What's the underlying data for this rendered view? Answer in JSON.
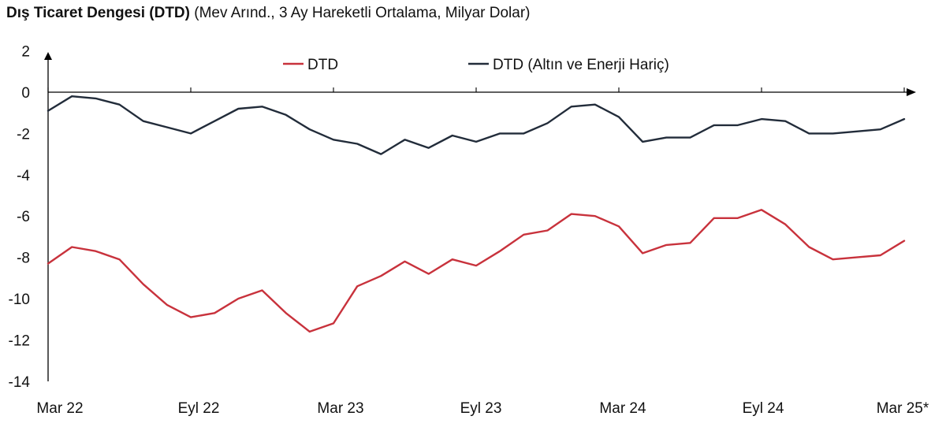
{
  "title": {
    "bold": "Dış Ticaret Dengesi (DTD)",
    "rest": " (Mev Arınd., 3 Ay Hareketli Ortalama, Milyar Dolar)"
  },
  "chart_data": {
    "type": "line",
    "x_tick_labels": [
      "Mar 22",
      "Eyl 22",
      "Mar 23",
      "Eyl 23",
      "Mar 24",
      "Eyl 24",
      "Mar 25*"
    ],
    "y_tick_labels": [
      "2",
      "0",
      "-2",
      "-4",
      "-6",
      "-8",
      "-10",
      "-12",
      "-14"
    ],
    "ylim": [
      -14,
      2
    ],
    "x": [
      "Mar 22",
      "Nis 22",
      "May 22",
      "Haz 22",
      "Tem 22",
      "Ağu 22",
      "Eyl 22",
      "Eki 22",
      "Kas 22",
      "Ara 22",
      "Oca 23",
      "Şub 23",
      "Mar 23",
      "Nis 23",
      "May 23",
      "Haz 23",
      "Tem 23",
      "Ağu 23",
      "Eyl 23",
      "Eki 23",
      "Kas 23",
      "Ara 23",
      "Oca 24",
      "Şub 24",
      "Mar 24",
      "Nis 24",
      "May 24",
      "Haz 24",
      "Tem 24",
      "Ağu 24",
      "Eyl 24",
      "Eki 24",
      "Kas 24",
      "Ara 24",
      "Oca 25",
      "Şub 25",
      "Mar 25*"
    ],
    "series": [
      {
        "name": "DTD",
        "color": "#c8323c",
        "values": [
          -8.3,
          -7.5,
          -7.7,
          -8.1,
          -9.3,
          -10.3,
          -10.9,
          -10.7,
          -10.0,
          -9.6,
          -10.7,
          -11.6,
          -11.2,
          -9.4,
          -8.9,
          -8.2,
          -8.8,
          -8.1,
          -8.4,
          -7.7,
          -6.9,
          -6.7,
          -5.9,
          -6.0,
          -6.5,
          -7.8,
          -7.4,
          -7.3,
          -6.1,
          -6.1,
          -5.7,
          -6.4,
          -7.5,
          -8.1,
          -8.0,
          -7.9,
          -7.2
        ]
      },
      {
        "name": "DTD (Altın ve Enerji Hariç)",
        "color": "#222c3a",
        "values": [
          -0.9,
          -0.2,
          -0.3,
          -0.6,
          -1.4,
          -1.7,
          -2.0,
          -1.4,
          -0.8,
          -0.7,
          -1.1,
          -1.8,
          -2.3,
          -2.5,
          -3.0,
          -2.3,
          -2.7,
          -2.1,
          -2.4,
          -2.0,
          -2.0,
          -1.5,
          -0.7,
          -0.6,
          -1.2,
          -2.4,
          -2.2,
          -2.2,
          -1.6,
          -1.6,
          -1.3,
          -1.4,
          -2.0,
          -2.0,
          -1.9,
          -1.8,
          -1.3
        ]
      }
    ],
    "legend": {
      "placement": "top"
    },
    "grid": false
  }
}
